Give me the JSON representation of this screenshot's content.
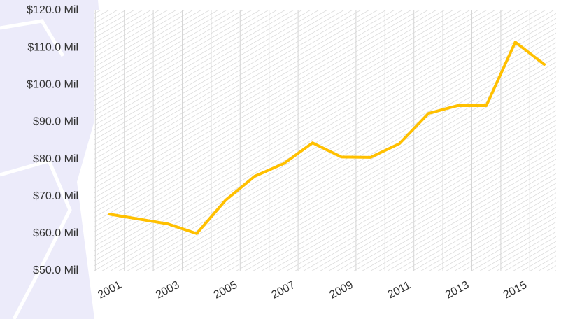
{
  "chart_data": {
    "type": "line",
    "categories": [
      "2001",
      null,
      "2003",
      null,
      "2005",
      null,
      "2007",
      null,
      "2009",
      null,
      "2011",
      null,
      "2013",
      null,
      "2015",
      null
    ],
    "series": [
      {
        "color": "#ffc000",
        "values": [
          65.2,
          63.9,
          62.6,
          60.0,
          69.0,
          75.4,
          78.8,
          84.4,
          80.6,
          80.5,
          84.2,
          92.3,
          94.4,
          94.4,
          111.5,
          105.5
        ]
      }
    ],
    "ylim": [
      50,
      120
    ],
    "yticks": [
      {
        "value": 50,
        "label": "$50.0 Mil"
      },
      {
        "value": 60,
        "label": "$60.0 Mil"
      },
      {
        "value": 70,
        "label": "$70.0 Mil"
      },
      {
        "value": 80,
        "label": "$80.0 Mil"
      },
      {
        "value": 90,
        "label": "$90.0 Mil"
      },
      {
        "value": 100,
        "label": "$100.0 Mil"
      },
      {
        "value": 110,
        "label": "$110.0 Mil"
      },
      {
        "value": 120,
        "label": "$120.0 Mil"
      }
    ]
  }
}
